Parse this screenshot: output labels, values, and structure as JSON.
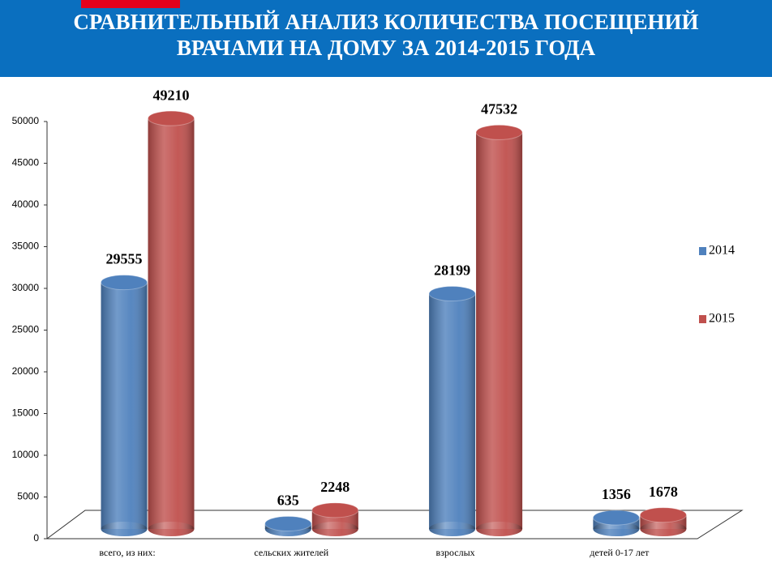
{
  "chart_data": {
    "type": "bar",
    "title": [
      "СРАВНИТЕЛЬНЫЙ АНАЛИЗ КОЛИЧЕСТВА ПОСЕЩЕНИЙ",
      "ВРАЧАМИ НА ДОМУ ЗА 2014-2015 ГОДА"
    ],
    "categories": [
      "всего, из них:",
      "сельских жителей",
      "взрослых",
      "детей 0-17 лет"
    ],
    "series": [
      {
        "name": "2014",
        "color": "#4f81bd",
        "values": [
          29555,
          635,
          28199,
          1356
        ]
      },
      {
        "name": "2015",
        "color": "#c0504d",
        "values": [
          49210,
          2248,
          47532,
          1678
        ]
      }
    ],
    "ylim": [
      0,
      50000
    ],
    "yticks": [
      0,
      5000,
      10000,
      15000,
      20000,
      25000,
      30000,
      35000,
      40000,
      45000,
      50000
    ],
    "legend": "right"
  }
}
